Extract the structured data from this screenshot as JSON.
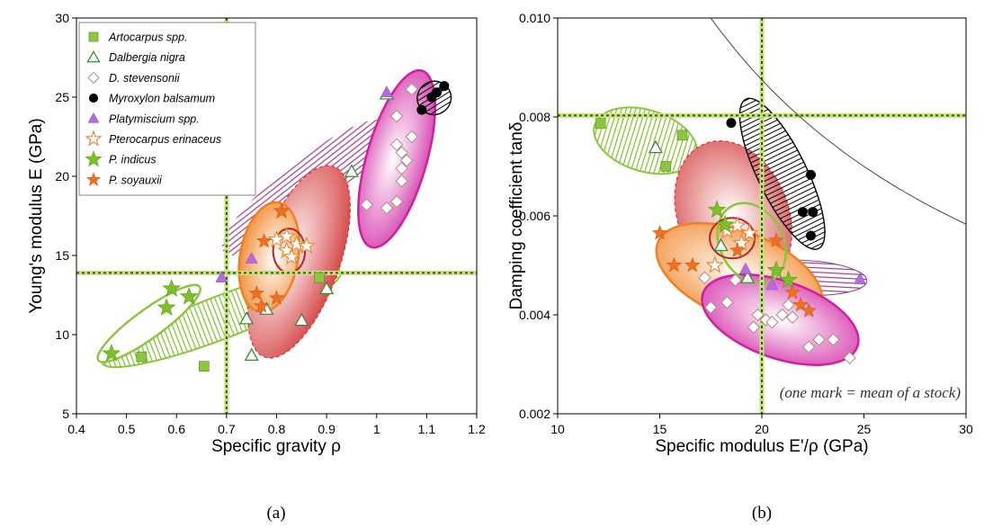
{
  "colors": {
    "artocarpus": "#8cc63f",
    "dalbergia": "#3a8a3a",
    "stevensonii": "#b08a8a",
    "myroxylon": "#000000",
    "platymiscium": "#b36ae2",
    "pterocarpus_erinaceus": "#e38b3a",
    "p_indicus": "#7cbf2a",
    "p_soyauxii": "#f07020",
    "guide_line": "#7cbf2a",
    "ellipse_green": "#8cc63f",
    "ellipse_orange": "#f08020",
    "ellipse_red": "#d43a3a",
    "ellipse_magenta": "#d01fa0",
    "ellipse_black": "#000000",
    "ellipse_purple": "#9a3a8a"
  },
  "legend": [
    {
      "key": "artocarpus",
      "label": "Artocarpus spp.",
      "marker": "square-filled"
    },
    {
      "key": "dalbergia",
      "label": "Dalbergia nigra",
      "marker": "triangle-open"
    },
    {
      "key": "stevensonii",
      "label": "D. stevensonii",
      "marker": "diamond-open"
    },
    {
      "key": "myroxylon",
      "label": "Myroxylon balsamum",
      "marker": "circle-filled"
    },
    {
      "key": "platymiscium",
      "label": "Platymiscium spp.",
      "marker": "triangle-filled"
    },
    {
      "key": "pterocarpus_erinaceus",
      "label": "Pterocarpus erinaceus",
      "marker": "star-open"
    },
    {
      "key": "p_indicus",
      "label": "P. indicus",
      "marker": "star-filled"
    },
    {
      "key": "p_soyauxii",
      "label": "P. soyauxii",
      "marker": "star-filled"
    }
  ],
  "captions": {
    "a": "(a)",
    "b": "(b)"
  },
  "chart_data": [
    {
      "type": "scatter",
      "panel": "a",
      "xlabel": "Specific gravity ρ",
      "ylabel": "Young's modulus E (GPa)",
      "xlim": [
        0.4,
        1.2
      ],
      "ylim": [
        5,
        30
      ],
      "xticks": [
        0.4,
        0.5,
        0.6,
        0.7,
        0.8,
        0.9,
        1,
        1.1,
        1.2
      ],
      "xtick_labels": [
        "0.4",
        "0.5",
        "0.6",
        "0.7",
        "0.8",
        "0.9",
        "1",
        "1.1",
        "1.2"
      ],
      "yticks": [
        5,
        10,
        15,
        20,
        25,
        30
      ],
      "ytick_labels": [
        "5",
        "10",
        "15",
        "20",
        "25",
        "30"
      ],
      "grid": false,
      "legend_position": "top-left",
      "reference_lines": {
        "x": 0.7,
        "y": 13.9
      },
      "series": [
        {
          "key": "artocarpus",
          "name": "Artocarpus spp.",
          "points": [
            [
              0.53,
              8.6
            ],
            [
              0.655,
              8.0
            ],
            [
              0.885,
              13.6
            ]
          ]
        },
        {
          "key": "dalbergia",
          "name": "Dalbergia nigra",
          "points": [
            [
              0.74,
              11.0
            ],
            [
              0.75,
              8.7
            ],
            [
              0.78,
              11.6
            ],
            [
              0.85,
              10.9
            ],
            [
              0.9,
              12.9
            ],
            [
              0.95,
              20.3
            ],
            [
              1.02,
              25.2
            ]
          ]
        },
        {
          "key": "stevensonii",
          "name": "D. stevensonii",
          "points": [
            [
              0.98,
              18.2
            ],
            [
              1.02,
              18.0
            ],
            [
              1.04,
              23.8
            ],
            [
              1.04,
              22.0
            ],
            [
              1.05,
              21.5
            ],
            [
              1.05,
              20.5
            ],
            [
              1.05,
              19.7
            ],
            [
              1.06,
              21.0
            ],
            [
              1.07,
              22.5
            ],
            [
              1.07,
              25.5
            ],
            [
              1.04,
              18.4
            ]
          ]
        },
        {
          "key": "myroxylon",
          "name": "Myroxylon balsamum",
          "points": [
            [
              1.09,
              24.2
            ],
            [
              1.11,
              25.0
            ],
            [
              1.12,
              25.3
            ],
            [
              1.135,
              25.7
            ]
          ]
        },
        {
          "key": "platymiscium",
          "name": "Platymiscium spp.",
          "points": [
            [
              0.69,
              13.6
            ],
            [
              0.75,
              14.8
            ],
            [
              1.02,
              25.3
            ]
          ]
        },
        {
          "key": "pterocarpus_erinaceus",
          "name": "Pterocarpus erinaceus",
          "points": [
            [
              0.81,
              17.8
            ],
            [
              0.8,
              16.0
            ],
            [
              0.82,
              15.3
            ],
            [
              0.83,
              14.9
            ],
            [
              0.84,
              15.7
            ],
            [
              0.86,
              15.6
            ],
            [
              0.82,
              16.2
            ]
          ]
        },
        {
          "key": "p_indicus",
          "name": "P. indicus",
          "points": [
            [
              0.47,
              8.8
            ],
            [
              0.58,
              11.7
            ],
            [
              0.59,
              12.9
            ],
            [
              0.625,
              12.4
            ]
          ]
        },
        {
          "key": "p_soyauxii",
          "name": "P. soyauxii",
          "points": [
            [
              0.76,
              12.6
            ],
            [
              0.77,
              11.8
            ],
            [
              0.775,
              15.9
            ],
            [
              0.8,
              12.3
            ],
            [
              0.81,
              17.8
            ]
          ]
        }
      ]
    },
    {
      "type": "scatter",
      "panel": "b",
      "xlabel": "Specific modulus E'/ρ (GPa)",
      "ylabel": "Damping coefficient tanδ",
      "xlim": [
        10,
        30
      ],
      "ylim": [
        0.002,
        0.01
      ],
      "xticks": [
        10,
        15,
        20,
        25,
        30
      ],
      "xtick_labels": [
        "10",
        "15",
        "20",
        "25",
        "30"
      ],
      "yticks": [
        0.002,
        0.004,
        0.006,
        0.008,
        0.01
      ],
      "ytick_labels": [
        "0.002",
        "0.004",
        "0.006",
        "0.008",
        "0.010"
      ],
      "grid": false,
      "reference_lines": {
        "x": 20,
        "y": 0.00803
      },
      "annotation": "(one mark = mean of a stock)",
      "series": [
        {
          "key": "artocarpus",
          "name": "Artocarpus spp.",
          "points": [
            [
              12.1,
              0.00787
            ],
            [
              15.3,
              0.007
            ],
            [
              16.1,
              0.00763
            ]
          ]
        },
        {
          "key": "dalbergia",
          "name": "Dalbergia nigra",
          "points": [
            [
              14.8,
              0.00738
            ],
            [
              18.0,
              0.0054
            ],
            [
              19.3,
              0.00475
            ]
          ]
        },
        {
          "key": "stevensonii",
          "name": "D. stevensonii",
          "points": [
            [
              17.2,
              0.00475
            ],
            [
              17.5,
              0.00415
            ],
            [
              18.3,
              0.00425
            ],
            [
              18.7,
              0.0047
            ],
            [
              19.6,
              0.00375
            ],
            [
              19.8,
              0.004
            ],
            [
              20.2,
              0.0039
            ],
            [
              20.5,
              0.00385
            ],
            [
              21.0,
              0.004
            ],
            [
              21.3,
              0.0042
            ],
            [
              21.5,
              0.00395
            ],
            [
              22.3,
              0.00335
            ],
            [
              22.8,
              0.0035
            ],
            [
              23.5,
              0.0035
            ],
            [
              24.3,
              0.00313
            ]
          ]
        },
        {
          "key": "myroxylon",
          "name": "Myroxylon balsamum",
          "points": [
            [
              18.5,
              0.00788
            ],
            [
              22.0,
              0.00608
            ],
            [
              22.5,
              0.00608
            ],
            [
              22.4,
              0.00683
            ],
            [
              22.4,
              0.0056
            ]
          ]
        },
        {
          "key": "platymiscium",
          "name": "Platymiscium spp.",
          "points": [
            [
              19.2,
              0.00492
            ],
            [
              20.5,
              0.0046
            ],
            [
              24.8,
              0.00472
            ]
          ]
        },
        {
          "key": "pterocarpus_erinaceus",
          "name": "Pterocarpus erinaceus",
          "points": [
            [
              17.7,
              0.005
            ],
            [
              18.3,
              0.0057
            ],
            [
              18.8,
              0.0058
            ],
            [
              19.4,
              0.00565
            ],
            [
              19.0,
              0.00545
            ]
          ]
        },
        {
          "key": "p_indicus",
          "name": "P. indicus",
          "points": [
            [
              17.8,
              0.00612
            ],
            [
              18.2,
              0.00582
            ],
            [
              20.7,
              0.0049
            ],
            [
              21.3,
              0.0047
            ]
          ]
        },
        {
          "key": "p_soyauxii",
          "name": "P. soyauxii",
          "points": [
            [
              15.0,
              0.00565
            ],
            [
              15.7,
              0.005
            ],
            [
              16.6,
              0.005
            ],
            [
              18.8,
              0.0053
            ],
            [
              20.7,
              0.0055
            ],
            [
              21.5,
              0.00445
            ],
            [
              21.9,
              0.0042
            ],
            [
              22.3,
              0.00408
            ]
          ]
        }
      ]
    }
  ]
}
